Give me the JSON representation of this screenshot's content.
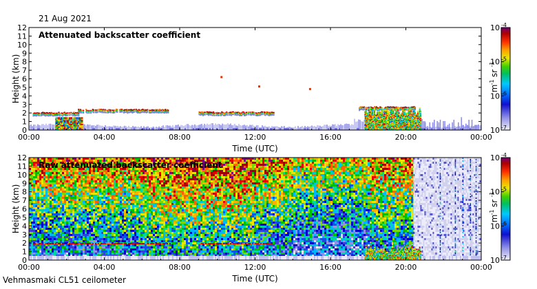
{
  "date_label": "21 Aug 2021",
  "footer_label": "Vehmasmaki CL51 ceilometer",
  "chart_data": [
    {
      "type": "heatmap",
      "title": "Attenuated backscatter coefficient",
      "xlabel": "Time (UTC)",
      "ylabel": "Height (km)",
      "x_ticks": [
        "00:00",
        "04:00",
        "08:00",
        "12:00",
        "16:00",
        "20:00",
        "00:00"
      ],
      "y_ticks": [
        0,
        1,
        2,
        3,
        4,
        5,
        6,
        7,
        8,
        9,
        10,
        11,
        12
      ],
      "ylim": [
        0,
        12
      ],
      "xlim_hours": [
        0,
        24
      ],
      "colorbar": {
        "min_label": "10",
        "min_exp": "-7",
        "max_label": "10",
        "max_exp": "-4",
        "ticks": [
          {
            "base": "10",
            "exp": "-7"
          },
          {
            "base": "10",
            "exp": "-6"
          },
          {
            "base": "10",
            "exp": "-5"
          },
          {
            "base": "10",
            "exp": "-4"
          }
        ],
        "unit": "m",
        "unit_exp": "-1",
        "unit2": "sr",
        "unit2_exp": "-1",
        "scale": "log"
      },
      "features": {
        "cloud_layer_km": [
          {
            "start_h": 0.2,
            "end_h": 2.6,
            "height_km": 1.95
          },
          {
            "start_h": 2.6,
            "end_h": 7.4,
            "height_km": 2.3
          },
          {
            "start_h": 9.0,
            "end_h": 13.0,
            "height_km": 2.0
          },
          {
            "start_h": 17.5,
            "end_h": 20.5,
            "height_km": 2.6
          }
        ],
        "boundary_layer_top_km": 0.6,
        "isolated_points": [
          {
            "time_h": 10.2,
            "height_km": 6.2
          },
          {
            "time_h": 12.2,
            "height_km": 5.1
          },
          {
            "time_h": 14.9,
            "height_km": 4.8
          }
        ]
      }
    },
    {
      "type": "heatmap",
      "title": "Raw attenuated backscatter coefficient",
      "xlabel": "Time (UTC)",
      "ylabel": "Height (km)",
      "x_ticks": [
        "00:00",
        "04:00",
        "08:00",
        "12:00",
        "16:00",
        "20:00",
        "00:00"
      ],
      "y_ticks": [
        0,
        1,
        2,
        3,
        4,
        5,
        6,
        7,
        8,
        9,
        10,
        11,
        12
      ],
      "ylim": [
        0,
        12
      ],
      "xlim_hours": [
        0,
        24
      ],
      "colorbar": {
        "ticks": [
          {
            "base": "10",
            "exp": "-7"
          },
          {
            "base": "10",
            "exp": "-6"
          },
          {
            "base": "10",
            "exp": "-5"
          },
          {
            "base": "10",
            "exp": "-4"
          }
        ],
        "unit": "m",
        "unit_exp": "-1",
        "unit2": "sr",
        "unit2_exp": "-1",
        "scale": "log"
      },
      "features": {
        "noise_field_end_h": 20.4,
        "sparse_region_start_h": 20.4
      }
    }
  ],
  "colors": {
    "scale": [
      "#ececfa",
      "#d8d8f5",
      "#9090e8",
      "#3c3cd8",
      "#0000c8",
      "#0058e8",
      "#00b4ff",
      "#00d8a0",
      "#00c000",
      "#7cd800",
      "#e8e800",
      "#ffb000",
      "#ff6000",
      "#e80000",
      "#a00000",
      "#780078"
    ]
  }
}
